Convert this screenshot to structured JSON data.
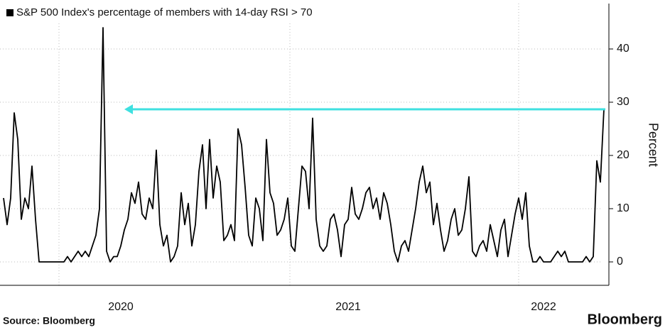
{
  "chart_data": {
    "type": "line",
    "series": [
      {
        "name": "S&P 500 Index's percentage of members with 14-day RSI > 70",
        "color": "#000000",
        "values": [
          12,
          7,
          12,
          28,
          23,
          8,
          12,
          10,
          18,
          8,
          0,
          0,
          0,
          0,
          0,
          0,
          0,
          0,
          1,
          0,
          1,
          2,
          1,
          2,
          1,
          3,
          5,
          10,
          44,
          2,
          0,
          1,
          1,
          3,
          6,
          8,
          13,
          11,
          15,
          9,
          8,
          12,
          10,
          21,
          7,
          3,
          5,
          0,
          1,
          3,
          13,
          7,
          11,
          3,
          7,
          17,
          22,
          10,
          23,
          12,
          18,
          15,
          4,
          5,
          7,
          4,
          25,
          22,
          14,
          5,
          3,
          12,
          10,
          4,
          23,
          13,
          11,
          5,
          6,
          8,
          12,
          3,
          2,
          10,
          18,
          17,
          10,
          27,
          8,
          3,
          2,
          3,
          8,
          9,
          6,
          1,
          7,
          8,
          14,
          9,
          8,
          10,
          13,
          14,
          10,
          12,
          8,
          13,
          11,
          7,
          2,
          0,
          3,
          4,
          2,
          6,
          10,
          15,
          18,
          13,
          15,
          7,
          11,
          6,
          2,
          4,
          8,
          10,
          5,
          6,
          10,
          16,
          2,
          1,
          3,
          4,
          2,
          7,
          4,
          1,
          6,
          8,
          1,
          5,
          9,
          12,
          8,
          13,
          3,
          0,
          0,
          1,
          0,
          0,
          0,
          1,
          2,
          1,
          2,
          0,
          0,
          0,
          0,
          0,
          1,
          0,
          1,
          19,
          15,
          28.7
        ]
      }
    ],
    "categories": [
      null,
      null,
      null,
      null,
      null,
      null,
      null,
      null,
      null,
      null,
      null,
      null,
      null,
      null,
      null,
      null,
      null,
      null,
      null,
      null,
      null,
      null,
      null,
      null,
      null,
      null,
      null,
      null,
      null,
      null,
      null,
      null,
      null,
      "2020",
      null,
      null,
      null,
      null,
      null,
      null,
      null,
      null,
      null,
      null,
      null,
      null,
      null,
      null,
      null,
      null,
      null,
      null,
      null,
      null,
      null,
      null,
      null,
      null,
      null,
      null,
      null,
      null,
      null,
      null,
      null,
      null,
      null,
      null,
      null,
      null,
      null,
      null,
      null,
      null,
      null,
      null,
      null,
      null,
      null,
      null,
      null,
      null,
      null,
      null,
      null,
      null,
      null,
      null,
      null,
      null,
      null,
      null,
      null,
      null,
      null,
      null,
      null,
      "2021",
      null,
      null,
      null,
      null,
      null,
      null,
      null,
      null,
      null,
      null,
      null,
      null,
      null,
      null,
      null,
      null,
      null,
      null,
      null,
      null,
      null,
      null,
      null,
      null,
      null,
      null,
      null,
      null,
      null,
      null,
      null,
      null,
      null,
      null,
      null,
      null,
      null,
      null,
      null,
      null,
      null,
      null,
      null,
      null,
      null,
      null,
      null,
      null,
      null,
      null,
      null,
      null,
      null,
      null,
      "2022",
      null,
      null,
      null,
      null,
      null,
      null,
      null,
      null,
      null,
      null,
      null,
      null,
      null,
      null,
      null,
      null,
      null
    ],
    "ylim": [
      -4.5,
      48
    ],
    "yticks": [
      0,
      10,
      20,
      30,
      40
    ],
    "ylabel": "Percent",
    "grid": true,
    "source": "Source: Bloomberg",
    "credit": "Bloomberg"
  }
}
